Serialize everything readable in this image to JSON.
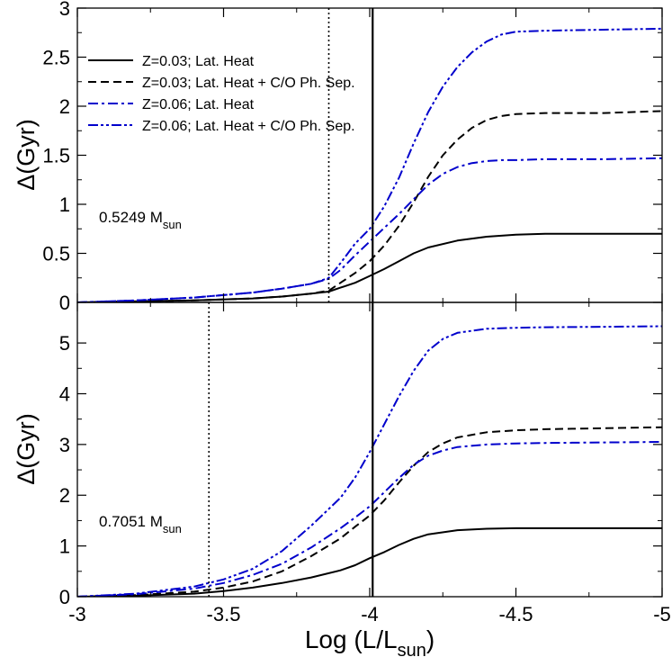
{
  "chart_data": {
    "type": "line",
    "shared_xaxis": {
      "label": "Log (L/L",
      "label_sub": "sun",
      "label_close": ")",
      "xlim": [
        -3,
        -5
      ],
      "ticks": [
        -3,
        -3.5,
        -4,
        -4.5,
        -5
      ],
      "tick_labels": [
        "-3",
        "-3.5",
        "-4",
        "-4.5",
        "-5"
      ]
    },
    "legend": {
      "placement": "top-left of upper panel",
      "entries": [
        {
          "label": "Z=0.03; Lat. Heat",
          "color": "#000000",
          "style": "solid"
        },
        {
          "label": "Z=0.03; Lat. Heat + C/O Ph. Sep.",
          "color": "#000000",
          "style": "dashed"
        },
        {
          "label": "Z=0.06; Lat. Heat",
          "color": "#0000cc",
          "style": "dashdot"
        },
        {
          "label": "Z=0.06; Lat. Heat + C/O Ph. Sep.",
          "color": "#0000cc",
          "style": "dashdotdot"
        }
      ]
    },
    "panels": [
      {
        "name": "upper",
        "ylabel": "Δ(Gyr)",
        "ylim": [
          0,
          3
        ],
        "yticks": [
          0,
          0.5,
          1,
          1.5,
          2,
          2.5,
          3
        ],
        "ytick_labels": [
          "0",
          "0.5",
          "1",
          "1.5",
          "2",
          "2.5",
          "3"
        ],
        "annotation": {
          "text": "0.5249 M",
          "sub": "sun"
        },
        "vlines": [
          {
            "x": -3.86,
            "style": "dotted"
          },
          {
            "x": -4.01,
            "style": "solid"
          }
        ],
        "series": [
          {
            "name": "Z=0.03; Lat. Heat",
            "color": "#000000",
            "style": "solid",
            "x": [
              -3.0,
              -3.2,
              -3.4,
              -3.6,
              -3.7,
              -3.8,
              -3.86,
              -3.9,
              -3.95,
              -4.0,
              -4.05,
              -4.1,
              -4.15,
              -4.2,
              -4.3,
              -4.4,
              -4.5,
              -4.6,
              -4.8,
              -5.0
            ],
            "y": [
              0.0,
              0.01,
              0.02,
              0.04,
              0.06,
              0.09,
              0.11,
              0.15,
              0.2,
              0.27,
              0.34,
              0.42,
              0.5,
              0.56,
              0.63,
              0.67,
              0.69,
              0.7,
              0.7,
              0.7
            ]
          },
          {
            "name": "Z=0.03; Lat. Heat + C/O Ph. Sep.",
            "color": "#000000",
            "style": "dashed",
            "x": [
              -3.0,
              -3.2,
              -3.4,
              -3.6,
              -3.7,
              -3.8,
              -3.86,
              -3.9,
              -3.95,
              -4.0,
              -4.05,
              -4.1,
              -4.15,
              -4.2,
              -4.25,
              -4.3,
              -4.35,
              -4.4,
              -4.45,
              -4.5,
              -4.6,
              -4.8,
              -5.0
            ],
            "y": [
              0.0,
              0.01,
              0.02,
              0.04,
              0.06,
              0.09,
              0.12,
              0.2,
              0.3,
              0.42,
              0.58,
              0.78,
              1.02,
              1.28,
              1.5,
              1.66,
              1.78,
              1.86,
              1.9,
              1.92,
              1.93,
              1.93,
              1.95
            ]
          },
          {
            "name": "Z=0.06; Lat. Heat",
            "color": "#0000cc",
            "style": "dashdot",
            "x": [
              -3.0,
              -3.2,
              -3.4,
              -3.6,
              -3.7,
              -3.8,
              -3.86,
              -3.9,
              -3.95,
              -4.0,
              -4.05,
              -4.1,
              -4.15,
              -4.2,
              -4.25,
              -4.3,
              -4.35,
              -4.4,
              -4.45,
              -4.5,
              -4.6,
              -4.8,
              -5.0
            ],
            "y": [
              0.0,
              0.02,
              0.05,
              0.1,
              0.14,
              0.19,
              0.24,
              0.33,
              0.48,
              0.62,
              0.76,
              0.9,
              1.05,
              1.2,
              1.31,
              1.38,
              1.42,
              1.44,
              1.45,
              1.45,
              1.46,
              1.46,
              1.47
            ]
          },
          {
            "name": "Z=0.06; Lat. Heat + C/O Ph. Sep.",
            "color": "#0000cc",
            "style": "dashdotdot",
            "x": [
              -3.0,
              -3.2,
              -3.4,
              -3.6,
              -3.7,
              -3.8,
              -3.86,
              -3.9,
              -3.95,
              -4.0,
              -4.05,
              -4.1,
              -4.15,
              -4.2,
              -4.25,
              -4.3,
              -4.35,
              -4.4,
              -4.45,
              -4.5,
              -4.6,
              -4.8,
              -5.0
            ],
            "y": [
              0.0,
              0.02,
              0.05,
              0.1,
              0.14,
              0.19,
              0.25,
              0.4,
              0.6,
              0.75,
              0.98,
              1.27,
              1.62,
              1.94,
              2.2,
              2.4,
              2.55,
              2.66,
              2.73,
              2.76,
              2.77,
              2.78,
              2.79
            ]
          }
        ]
      },
      {
        "name": "lower",
        "ylabel": "Δ(Gyr)",
        "ylim": [
          0,
          5.8
        ],
        "yticks": [
          0,
          1,
          2,
          3,
          4,
          5
        ],
        "ytick_labels": [
          "0",
          "1",
          "2",
          "3",
          "4",
          "5"
        ],
        "annotation": {
          "text": "0.7051 M",
          "sub": "sun"
        },
        "vlines": [
          {
            "x": -3.45,
            "style": "dotted"
          },
          {
            "x": -4.01,
            "style": "solid"
          }
        ],
        "series": [
          {
            "name": "Z=0.03; Lat. Heat",
            "color": "#000000",
            "style": "solid",
            "x": [
              -3.0,
              -3.2,
              -3.4,
              -3.5,
              -3.6,
              -3.7,
              -3.8,
              -3.9,
              -3.95,
              -4.0,
              -4.05,
              -4.1,
              -4.15,
              -4.2,
              -4.3,
              -4.4,
              -4.5,
              -4.6,
              -4.8,
              -5.0
            ],
            "y": [
              0.0,
              0.02,
              0.06,
              0.11,
              0.18,
              0.27,
              0.38,
              0.52,
              0.62,
              0.76,
              0.88,
              1.02,
              1.14,
              1.23,
              1.31,
              1.34,
              1.35,
              1.35,
              1.35,
              1.35
            ]
          },
          {
            "name": "Z=0.03; Lat. Heat + C/O Ph. Sep.",
            "color": "#000000",
            "style": "dashed",
            "x": [
              -3.0,
              -3.2,
              -3.4,
              -3.5,
              -3.6,
              -3.7,
              -3.8,
              -3.9,
              -3.95,
              -4.0,
              -4.05,
              -4.1,
              -4.15,
              -4.2,
              -4.25,
              -4.3,
              -4.4,
              -4.5,
              -4.6,
              -4.8,
              -5.0
            ],
            "y": [
              0.0,
              0.03,
              0.1,
              0.18,
              0.3,
              0.5,
              0.8,
              1.15,
              1.38,
              1.6,
              1.9,
              2.25,
              2.58,
              2.85,
              3.02,
              3.14,
              3.24,
              3.28,
              3.3,
              3.32,
              3.34
            ]
          },
          {
            "name": "Z=0.06; Lat. Heat",
            "color": "#0000cc",
            "style": "dashdot",
            "x": [
              -3.0,
              -3.2,
              -3.4,
              -3.5,
              -3.6,
              -3.7,
              -3.8,
              -3.9,
              -3.95,
              -4.0,
              -4.05,
              -4.1,
              -4.15,
              -4.2,
              -4.25,
              -4.3,
              -4.4,
              -4.5,
              -4.6,
              -4.8,
              -5.0
            ],
            "y": [
              0.0,
              0.05,
              0.16,
              0.27,
              0.43,
              0.65,
              0.97,
              1.35,
              1.56,
              1.78,
              2.06,
              2.34,
              2.6,
              2.78,
              2.88,
              2.95,
              3.0,
              3.02,
              3.03,
              3.04,
              3.05
            ]
          },
          {
            "name": "Z=0.06; Lat. Heat + C/O Ph. Sep.",
            "color": "#0000cc",
            "style": "dashdotdot",
            "x": [
              -3.0,
              -3.2,
              -3.4,
              -3.5,
              -3.6,
              -3.7,
              -3.8,
              -3.9,
              -3.95,
              -4.0,
              -4.05,
              -4.1,
              -4.15,
              -4.2,
              -4.25,
              -4.3,
              -4.4,
              -4.5,
              -4.6,
              -4.8,
              -5.0
            ],
            "y": [
              0.0,
              0.06,
              0.2,
              0.34,
              0.55,
              0.9,
              1.4,
              1.95,
              2.35,
              2.85,
              3.4,
              3.95,
              4.45,
              4.85,
              5.08,
              5.2,
              5.28,
              5.3,
              5.31,
              5.32,
              5.33
            ]
          }
        ]
      }
    ]
  }
}
